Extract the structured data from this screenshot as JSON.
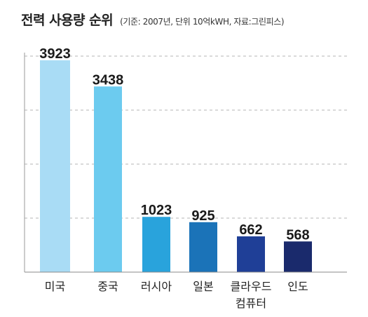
{
  "chart_data": {
    "type": "bar",
    "title": "전력 사용량 순위",
    "subtitle": "(기준: 2007년, 단위 10억kWH, 자료:그린피스)",
    "categories": [
      [
        "미국"
      ],
      [
        "중국"
      ],
      [
        "러시아"
      ],
      [
        "일본"
      ],
      [
        "클라우드",
        "컴퓨터"
      ],
      [
        "인도"
      ]
    ],
    "values": [
      3923,
      3438,
      1023,
      925,
      662,
      568
    ],
    "ylim": [
      0,
      4000
    ],
    "grid": true,
    "colors": [
      "#a9dcf5",
      "#6ccbef",
      "#29a3dc",
      "#1b73b8",
      "#1f3f97",
      "#1a2a6c"
    ]
  }
}
